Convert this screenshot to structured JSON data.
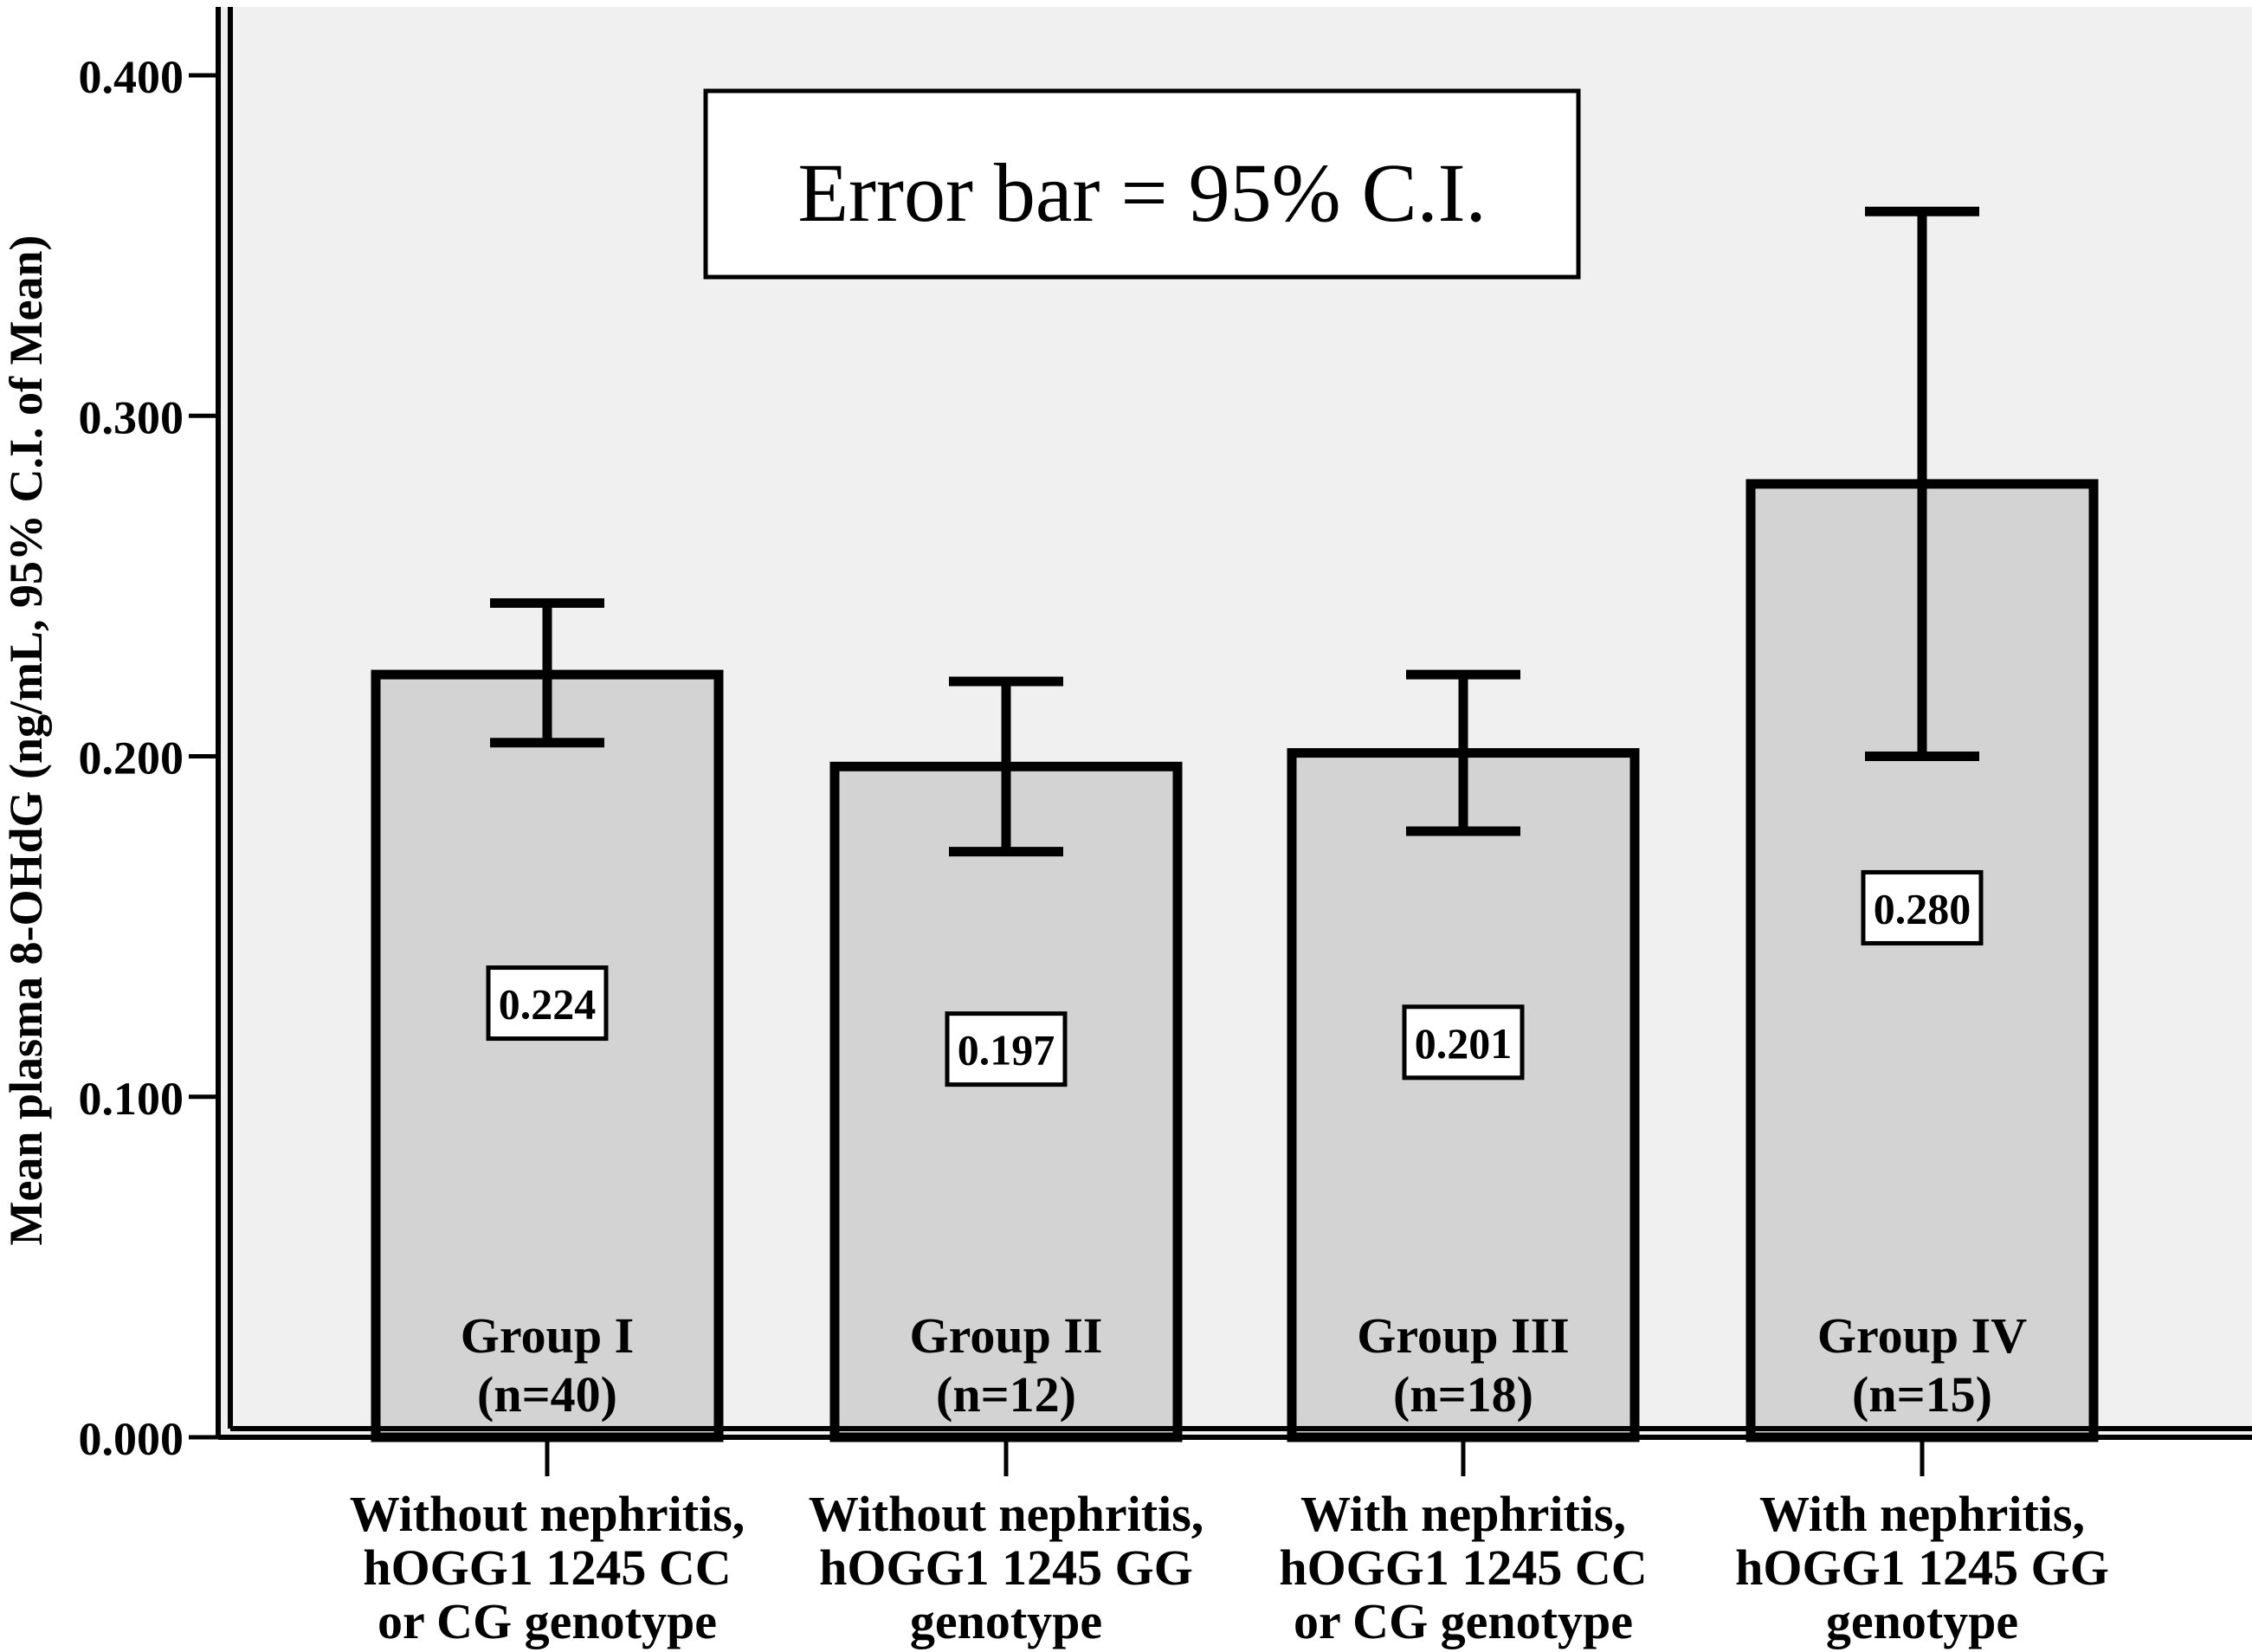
{
  "chart_data": {
    "type": "bar",
    "ylabel": "Mean plasma 8-OHdG (ng/mL, 95% C.I. of Mean)",
    "ylim": [
      0.0,
      0.4
    ],
    "yticks": [
      "0.000",
      "0.100",
      "0.200",
      "0.300",
      "0.400"
    ],
    "yticks_values": [
      0.0,
      0.1,
      0.2,
      0.3,
      0.4
    ],
    "legend_note": "Error bar = 95% C.I.",
    "grid": false,
    "bar_fill": "#d3d3d3",
    "plot_background": "#f0f0f0",
    "categories": [
      {
        "label_lines": [
          "Without nephritis,",
          "hOGG1 1245 CC",
          "or CG genotype"
        ],
        "group": "Group I",
        "n": "(n=40)",
        "value": 0.224,
        "value_label": "0.224",
        "ci_low": 0.204,
        "ci_high": 0.245
      },
      {
        "label_lines": [
          "Without nephritis,",
          "hOGG1 1245 GG",
          "genotype"
        ],
        "group": "Group II",
        "n": "(n=12)",
        "value": 0.197,
        "value_label": "0.197",
        "ci_low": 0.172,
        "ci_high": 0.222
      },
      {
        "label_lines": [
          "With nephritis,",
          "hOGG1 1245 CC",
          "or CG genotype"
        ],
        "group": "Group III",
        "n": "(n=18)",
        "value": 0.201,
        "value_label": "0.201",
        "ci_low": 0.178,
        "ci_high": 0.224
      },
      {
        "label_lines": [
          "With nephritis,",
          "hOGG1 1245 GG",
          "genotype"
        ],
        "group": "Group IV",
        "n": "(n=15)",
        "value": 0.28,
        "value_label": "0.280",
        "ci_low": 0.2,
        "ci_high": 0.36
      }
    ]
  }
}
